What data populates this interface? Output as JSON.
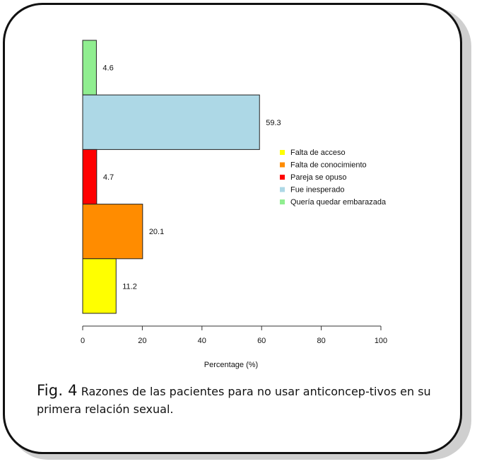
{
  "chart_data": {
    "type": "bar",
    "orientation": "horizontal",
    "categories": [
      "Quería quedar embarazada",
      "Fue inesperado",
      "Pareja se opuso",
      "Falta de conocimiento",
      "Falta de acceso"
    ],
    "values": [
      4.6,
      59.3,
      4.7,
      20.1,
      11.2
    ],
    "value_labels": [
      "4.6",
      "59.3",
      "4.7",
      "20.1",
      "11.2"
    ],
    "colors": [
      "#90ee90",
      "#add8e6",
      "#ff0000",
      "#ff8c00",
      "#ffff00"
    ],
    "xlabel": "Percentage (%)",
    "ylabel": "",
    "xlim": [
      0,
      100
    ],
    "x_ticks": [
      0,
      20,
      40,
      60,
      80,
      100
    ],
    "x_tick_labels": [
      "0",
      "20",
      "40",
      "60",
      "80",
      "100"
    ],
    "grid": false,
    "legend": {
      "position": "right",
      "entries": [
        {
          "label": "Falta de acceso",
          "color": "#ffff00"
        },
        {
          "label": "Falta de conocimiento",
          "color": "#ff8c00"
        },
        {
          "label": "Pareja se opuso",
          "color": "#ff0000"
        },
        {
          "label": "Fue inesperado",
          "color": "#add8e6"
        },
        {
          "label": "Quería quedar embarazada",
          "color": "#90ee90"
        }
      ]
    }
  },
  "caption": {
    "label": "Fig. 4",
    "text": "Razones de las pacientes para no usar anticoncep-tivos en su primera relación sexual."
  }
}
